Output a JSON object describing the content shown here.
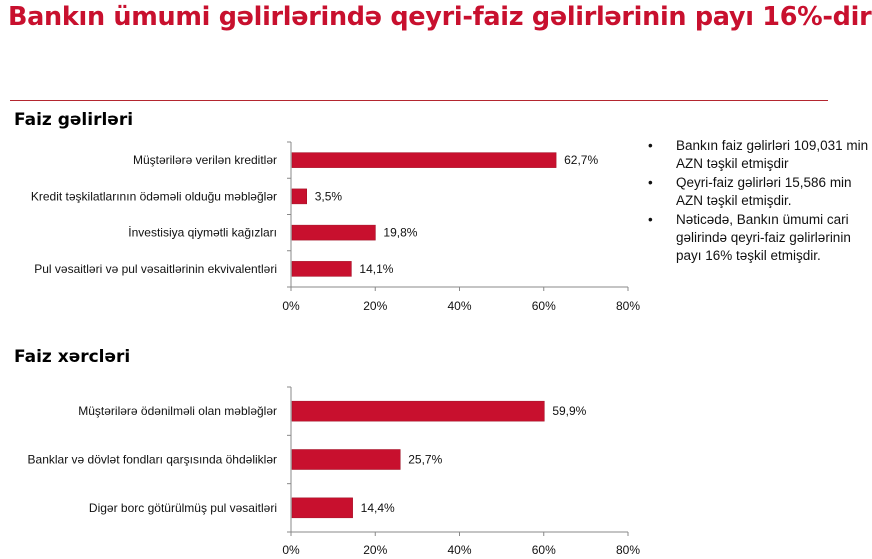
{
  "title": "Bankın ümumi gəlirlərində qeyri-faiz gəlirlərinin payı 16%-dir*",
  "colors": {
    "title": "#c8102e",
    "bar": "#c8102e",
    "rule": "#b4262f"
  },
  "notes": [
    "Bankın faiz gəlirləri 109,031 min AZN təşkil etmişdir",
    "Qeyri-faiz gəlirləri  15,586 min AZN təşkil etmişdir.",
    "Nəticədə, Bankın ümumi  cari gəlirində qeyri-faiz gəlirlərinin payı 16% təşkil etmişdir."
  ],
  "chart_data": [
    {
      "type": "bar",
      "orientation": "horizontal",
      "title": "Faiz gəlirləri",
      "categories": [
        "Müştərilərə verilən kreditlər",
        "Kredit təşkilatlarının ödəməli olduğu məbləğlər",
        "İnvestisiya qiymətli kağızları",
        "Pul vəsaitləri və pul vəsaitlərinin ekvivalentləri"
      ],
      "values": [
        62.7,
        3.5,
        19.8,
        14.1
      ],
      "data_labels": [
        "62,7%",
        "3,5%",
        "19,8%",
        "14,1%"
      ],
      "xlim": [
        0,
        80
      ],
      "xticks": [
        "0%",
        "20%",
        "40%",
        "60%",
        "80%"
      ],
      "grid": false
    },
    {
      "type": "bar",
      "orientation": "horizontal",
      "title": "Faiz xərcləri",
      "categories": [
        "Müştərilərə ödənilməli olan məbləğlər",
        "Banklar və dövlət fondları qarşısında öhdəliklər",
        "Digər borc götürülmüş pul vəsaitləri"
      ],
      "values": [
        59.9,
        25.7,
        14.4
      ],
      "data_labels": [
        "59,9%",
        "25,7%",
        "14,4%"
      ],
      "xlim": [
        0,
        80
      ],
      "xticks": [
        "0%",
        "20%",
        "40%",
        "60%",
        "80%"
      ],
      "grid": false
    }
  ]
}
